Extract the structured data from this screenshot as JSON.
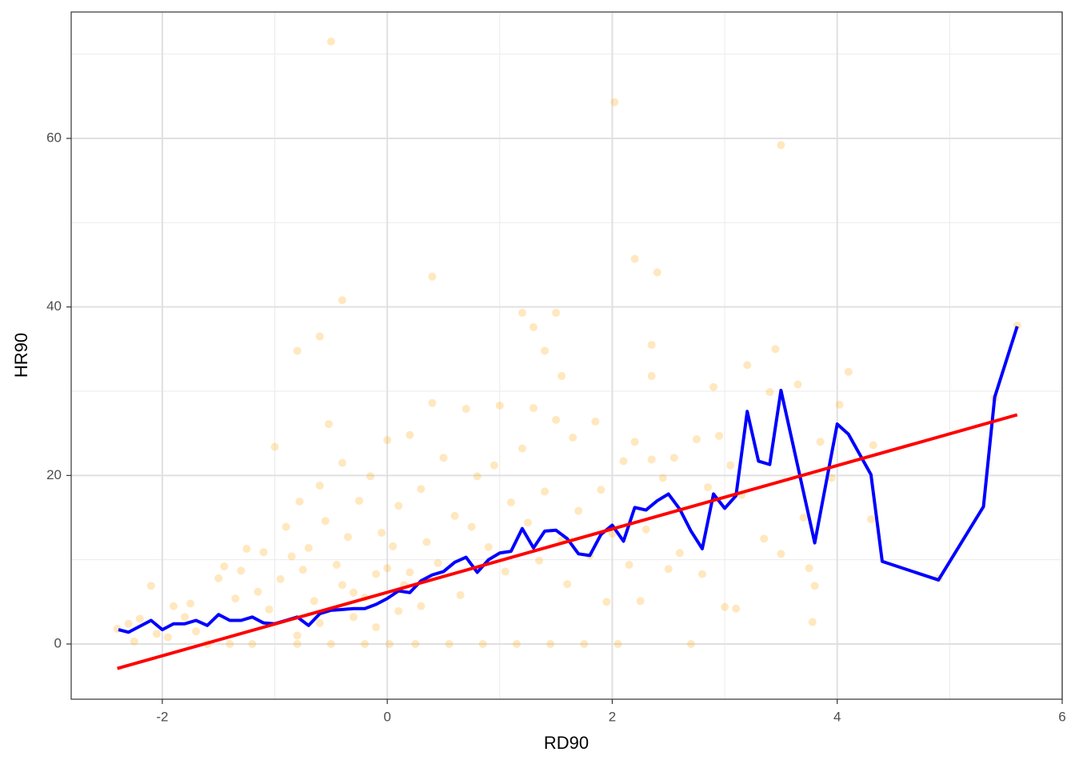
{
  "chart_data": {
    "type": "scatter",
    "x_label": "RD90",
    "y_label": "HR90",
    "xlim": [
      -2.81,
      6.0
    ],
    "ylim": [
      -6.55,
      75.0
    ],
    "xticks": [
      -2,
      0,
      2,
      4,
      6
    ],
    "yticks": [
      0,
      20,
      40,
      60
    ],
    "grid": true,
    "minor_grid": true,
    "series": [
      {
        "type": "scatter",
        "color": "#ffa500",
        "x": [
          -2.4,
          -2.3,
          -2.25,
          -2.2,
          -2.1,
          -2.05,
          -1.95,
          -1.9,
          -1.8,
          -1.75,
          -1.7,
          -1.6,
          -1.5,
          -1.45,
          -1.4,
          -1.35,
          -1.3,
          -1.25,
          -1.2,
          -1.15,
          -1.1,
          -1.05,
          -1.0,
          -0.95,
          -0.9,
          -0.85,
          -0.8,
          -0.78,
          -0.75,
          -0.7,
          -0.65,
          -0.6,
          -0.55,
          -0.52,
          -0.5,
          -0.45,
          -0.4,
          -0.35,
          -0.3,
          -0.25,
          -0.2,
          -0.15,
          -0.1,
          -0.05,
          0,
          0.02,
          0.05,
          0.1,
          0.15,
          0.2,
          0.25,
          0.3,
          0.35,
          0.4,
          0.45,
          0.5,
          0.55,
          0.6,
          0.65,
          0.7,
          0.75,
          0.8,
          0.85,
          0.9,
          0.95,
          1.0,
          1.05,
          1.1,
          1.15,
          1.2,
          1.25,
          1.3,
          1.35,
          1.4,
          1.45,
          1.5,
          1.55,
          1.6,
          1.65,
          1.7,
          1.75,
          1.8,
          1.85,
          1.9,
          1.95,
          2.0,
          2.05,
          2.1,
          2.15,
          2.2,
          2.25,
          2.3,
          2.35,
          2.45,
          2.5,
          2.55,
          2.6,
          2.7,
          2.75,
          2.8,
          2.85,
          2.95,
          3.0,
          3.05,
          3.1,
          3.15,
          3.35,
          3.4,
          3.5,
          3.65,
          3.7,
          3.75,
          3.78,
          3.8,
          3.85,
          3.95,
          4.02,
          4.3,
          4.32,
          4.9,
          5.4,
          -0.5,
          2.02,
          3.5,
          2.2,
          2.4,
          0.4,
          -0.4,
          1.2,
          1.5,
          1.3,
          -0.6,
          -0.8,
          2.35,
          3.45,
          5.6,
          1.4,
          2.35,
          3.2,
          4.1,
          2.9,
          1.55,
          -0.3,
          -0.2,
          0.1,
          0.0,
          -0.1,
          0.3,
          -0.4,
          -0.6,
          -0.8,
          0.2
        ],
        "values": [
          1.8,
          2.4,
          0.3,
          3.0,
          6.9,
          1.2,
          0.8,
          4.5,
          3.2,
          4.8,
          1.5,
          0,
          7.8,
          9.2,
          0,
          5.4,
          8.7,
          11.3,
          0,
          6.2,
          10.9,
          4.1,
          23.4,
          7.7,
          13.9,
          10.4,
          0,
          16.9,
          8.8,
          11.4,
          5.1,
          18.8,
          14.6,
          26.1,
          0,
          9.4,
          21.5,
          12.7,
          6.1,
          17.0,
          0,
          19.9,
          8.3,
          13.2,
          24.2,
          0,
          11.6,
          16.4,
          7.0,
          24.8,
          0,
          18.4,
          12.1,
          28.6,
          9.6,
          22.1,
          0,
          15.2,
          5.8,
          27.9,
          13.9,
          19.9,
          0,
          11.5,
          21.2,
          28.3,
          8.6,
          16.8,
          0,
          23.2,
          14.4,
          28.0,
          9.9,
          18.1,
          0,
          26.6,
          12.3,
          7.1,
          24.5,
          15.8,
          0,
          10.5,
          26.4,
          18.3,
          5.0,
          13.1,
          0,
          21.7,
          9.4,
          24.0,
          5.1,
          13.6,
          21.9,
          19.7,
          8.9,
          22.1,
          10.8,
          0,
          24.3,
          8.3,
          18.6,
          24.7,
          4.4,
          21.2,
          4.2,
          17.7,
          12.5,
          29.9,
          10.7,
          30.8,
          15.0,
          9.0,
          2.6,
          6.9,
          24.0,
          19.7,
          28.4,
          14.8,
          23.6,
          7.8,
          29.2,
          71.5,
          64.3,
          59.2,
          45.7,
          44.1,
          43.6,
          40.8,
          39.3,
          39.3,
          37.6,
          36.5,
          34.8,
          35.5,
          35.0,
          37.8,
          34.8,
          31.8,
          33.1,
          32.3,
          30.5,
          31.8,
          3.2,
          5.5,
          3.9,
          9.0,
          2.0,
          4.5,
          7.0,
          2.5,
          1.0,
          8.5
        ]
      },
      {
        "type": "line",
        "color": "#0000ff",
        "x": [
          -2.39,
          -2.3,
          -2.1,
          -2.0,
          -1.9,
          -1.8,
          -1.7,
          -1.6,
          -1.5,
          -1.4,
          -1.3,
          -1.2,
          -1.1,
          -1.0,
          -0.9,
          -0.8,
          -0.7,
          -0.6,
          -0.5,
          -0.4,
          -0.3,
          -0.2,
          -0.1,
          0,
          0.1,
          0.2,
          0.3,
          0.4,
          0.5,
          0.6,
          0.7,
          0.8,
          0.9,
          1.0,
          1.1,
          1.2,
          1.3,
          1.4,
          1.5,
          1.6,
          1.7,
          1.8,
          1.9,
          2.0,
          2.1,
          2.2,
          2.3,
          2.4,
          2.5,
          2.6,
          2.7,
          2.8,
          2.9,
          3.0,
          3.1,
          3.2,
          3.3,
          3.4,
          3.5,
          3.8,
          4.0,
          4.1,
          4.3,
          4.4,
          4.9,
          5.3,
          5.4,
          5.6
        ],
        "values": [
          1.7,
          1.4,
          2.8,
          1.7,
          2.4,
          2.4,
          2.8,
          2.2,
          3.5,
          2.8,
          2.8,
          3.2,
          2.5,
          2.4,
          2.8,
          3.2,
          2.2,
          3.6,
          4.0,
          4.1,
          4.2,
          4.2,
          4.7,
          5.4,
          6.3,
          6.1,
          7.5,
          8.2,
          8.6,
          9.7,
          10.3,
          8.5,
          10.0,
          10.8,
          11.0,
          13.7,
          11.4,
          13.4,
          13.5,
          12.5,
          10.7,
          10.5,
          13.0,
          14.1,
          12.2,
          16.2,
          15.9,
          17.0,
          17.8,
          16.0,
          13.4,
          11.3,
          17.8,
          16.1,
          17.6,
          27.6,
          21.7,
          21.3,
          30.1,
          12.0,
          26.1,
          24.9,
          20.1,
          9.8,
          7.6,
          16.3,
          29.3,
          37.7
        ]
      },
      {
        "type": "line",
        "color": "#ff0000",
        "x": [
          -2.4,
          5.6
        ],
        "values": [
          -2.9,
          27.2
        ]
      }
    ]
  }
}
